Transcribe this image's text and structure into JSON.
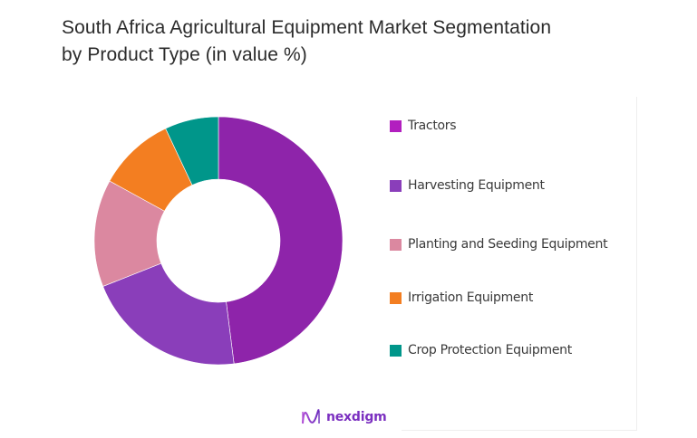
{
  "title": {
    "line1": "South Africa Agricultural Equipment Market Segmentation",
    "line2": "by Product Type (in value %)"
  },
  "brand": {
    "logo_text": "nexdigm",
    "color": "#7b2fc0"
  },
  "chart_data": {
    "type": "pie",
    "variant": "donut",
    "title": "South Africa Agricultural Equipment Market Segmentation by Product Type (in value %)",
    "categories": [
      "Tractors",
      "Harvesting Equipment",
      "Planting and Seeding Equipment",
      "Irrigation Equipment",
      "Crop Protection Equipment"
    ],
    "values": [
      48,
      21,
      14,
      10,
      7
    ],
    "unit": "%",
    "colors": [
      "#8E24AA",
      "#8A3EBA",
      "#DB88A0",
      "#F37E21",
      "#00968A"
    ],
    "legend_colors": [
      "#B21FBF",
      "#8A3EBA",
      "#DB88A0",
      "#F37E21",
      "#00968A"
    ],
    "legend_position": "right",
    "start_angle_deg": 0,
    "direction": "clockwise",
    "data_labels": false
  },
  "legend": {
    "items": [
      {
        "label": "Tractors",
        "color": "#B21FBF"
      },
      {
        "label": "Harvesting Equipment",
        "color": "#8A3EBA"
      },
      {
        "label": "Planting and Seeding Equipment",
        "color": "#DB88A0"
      },
      {
        "label": "Irrigation Equipment",
        "color": "#F37E21"
      },
      {
        "label": "Crop Protection Equipment",
        "color": "#00968A"
      }
    ]
  }
}
